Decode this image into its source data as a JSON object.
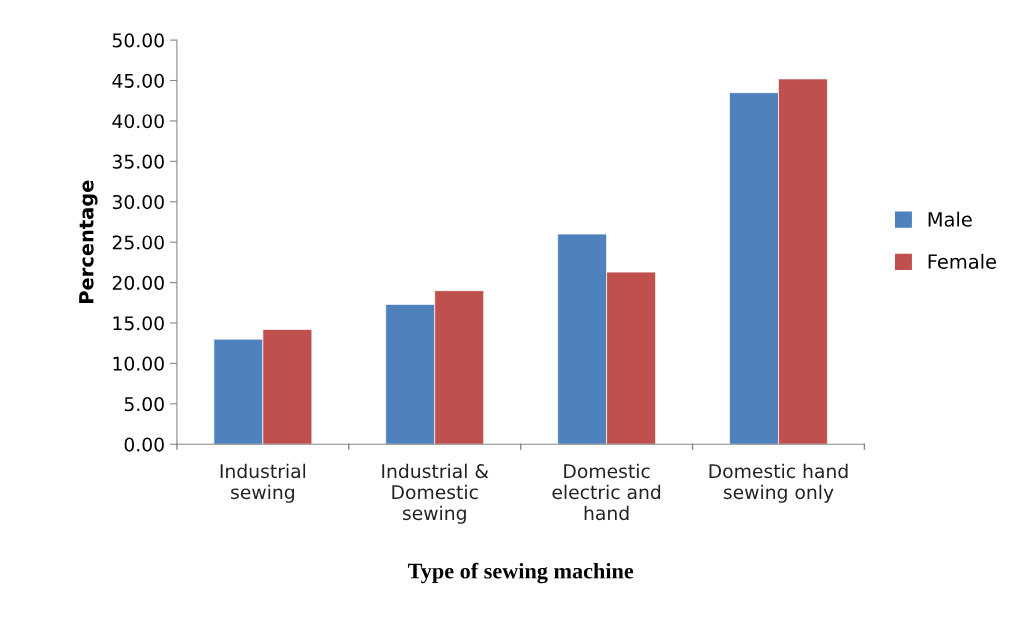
{
  "chart_data": {
    "type": "bar",
    "xlabel": "Type of sewing machine",
    "ylabel": "Percentage",
    "categories": [
      "Industrial\nsewing",
      "Industrial &\nDomestic\nsewing",
      "Domestic\nelectric and\nhand",
      "Domestic hand\nsewing only"
    ],
    "series": [
      {
        "name": "Male",
        "color": "#4f81bd",
        "values": [
          13.0,
          17.3,
          26.0,
          43.5
        ]
      },
      {
        "name": "Female",
        "color": "#c0504d",
        "values": [
          14.2,
          19.0,
          21.3,
          45.2
        ]
      }
    ],
    "ylim": [
      0,
      50
    ],
    "yticks": [
      {
        "value": 0,
        "label": "0.00"
      },
      {
        "value": 5,
        "label": "5.00"
      },
      {
        "value": 10,
        "label": "10.00"
      },
      {
        "value": 15,
        "label": "15.00"
      },
      {
        "value": 20,
        "label": "20.00"
      },
      {
        "value": 25,
        "label": "25.00"
      },
      {
        "value": 30,
        "label": "30.00"
      },
      {
        "value": 35,
        "label": "35.00"
      },
      {
        "value": 40,
        "label": "40.00"
      },
      {
        "value": 45,
        "label": "45.00"
      },
      {
        "value": 50,
        "label": "50.00"
      }
    ],
    "grid": false,
    "legend": "right"
  }
}
